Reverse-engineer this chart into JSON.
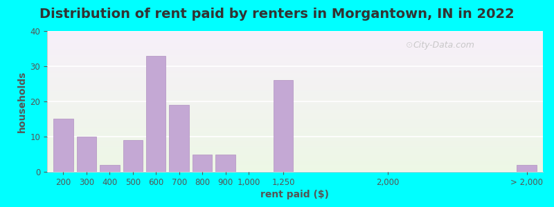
{
  "title": "Distribution of rent paid by renters in Morgantown, IN in 2022",
  "xlabel": "rent paid ($)",
  "ylabel": "households",
  "bar_color": "#c4a8d4",
  "bar_edgecolor": "#b090c0",
  "background_outer": "#00ffff",
  "ylim": [
    0,
    40
  ],
  "yticks": [
    0,
    10,
    20,
    30,
    40
  ],
  "bars": [
    {
      "label": "200",
      "value": 15,
      "x": 0
    },
    {
      "label": "300",
      "value": 10,
      "x": 1
    },
    {
      "label": "400",
      "value": 2,
      "x": 2
    },
    {
      "label": "500",
      "value": 9,
      "x": 3
    },
    {
      "label": "600",
      "value": 33,
      "x": 4
    },
    {
      "label": "700",
      "value": 19,
      "x": 5
    },
    {
      "label": "800",
      "value": 5,
      "x": 6
    },
    {
      "label": "900",
      "value": 5,
      "x": 7
    },
    {
      "label": "1,000",
      "value": 0,
      "x": 8
    },
    {
      "label": "1,250",
      "value": 26,
      "x": 9.5
    },
    {
      "label": "2,000",
      "value": 0,
      "x": 14
    },
    {
      "label": "> 2,000",
      "value": 2,
      "x": 20
    }
  ],
  "title_fontsize": 14,
  "axis_label_fontsize": 10,
  "tick_fontsize": 8.5,
  "watermark": "City-Data.com"
}
